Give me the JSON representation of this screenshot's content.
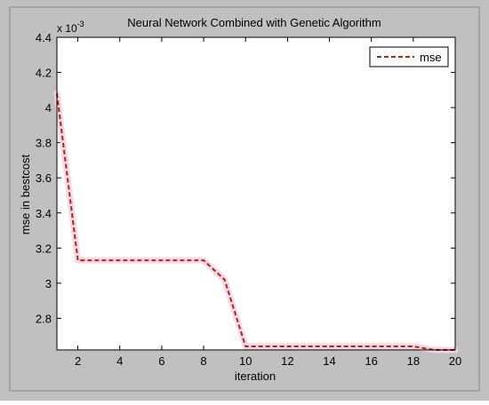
{
  "chart_data": {
    "type": "line",
    "title": "Neural Network Combined with Genetic Algorithm",
    "xlabel": "iteration",
    "ylabel": "mse in bestcost",
    "exponent_label": "x 10",
    "exponent_power": "-3",
    "xlim": [
      1,
      20
    ],
    "ylim": [
      2.62,
      4.4
    ],
    "x_ticks": [
      2,
      4,
      6,
      8,
      10,
      12,
      14,
      16,
      18,
      20
    ],
    "y_ticks": [
      2.8,
      3,
      3.2,
      3.4,
      3.6,
      3.8,
      4,
      4.2,
      4.4
    ],
    "x_tick_labels": [
      "2",
      "4",
      "6",
      "8",
      "10",
      "12",
      "14",
      "16",
      "18",
      "20"
    ],
    "y_tick_labels": [
      "2.8",
      "3",
      "3.2",
      "3.4",
      "3.6",
      "3.8",
      "4",
      "4.2",
      "4.4"
    ],
    "grid": false,
    "legend_position": "top-right",
    "series": [
      {
        "name": "mse",
        "color": "#a52a14",
        "style": "dashed",
        "x": [
          1,
          2,
          3,
          4,
          5,
          6,
          7,
          8,
          9,
          10,
          11,
          12,
          13,
          14,
          15,
          16,
          17,
          18,
          19,
          20
        ],
        "y": [
          4.08,
          3.13,
          3.13,
          3.13,
          3.13,
          3.13,
          3.13,
          3.13,
          3.02,
          2.64,
          2.64,
          2.64,
          2.64,
          2.64,
          2.64,
          2.64,
          2.64,
          2.64,
          2.62,
          2.62
        ]
      }
    ]
  },
  "colors": {
    "figure_background": "#c0c0c0",
    "axes_background": "#ffffff",
    "frame": "#000000"
  }
}
